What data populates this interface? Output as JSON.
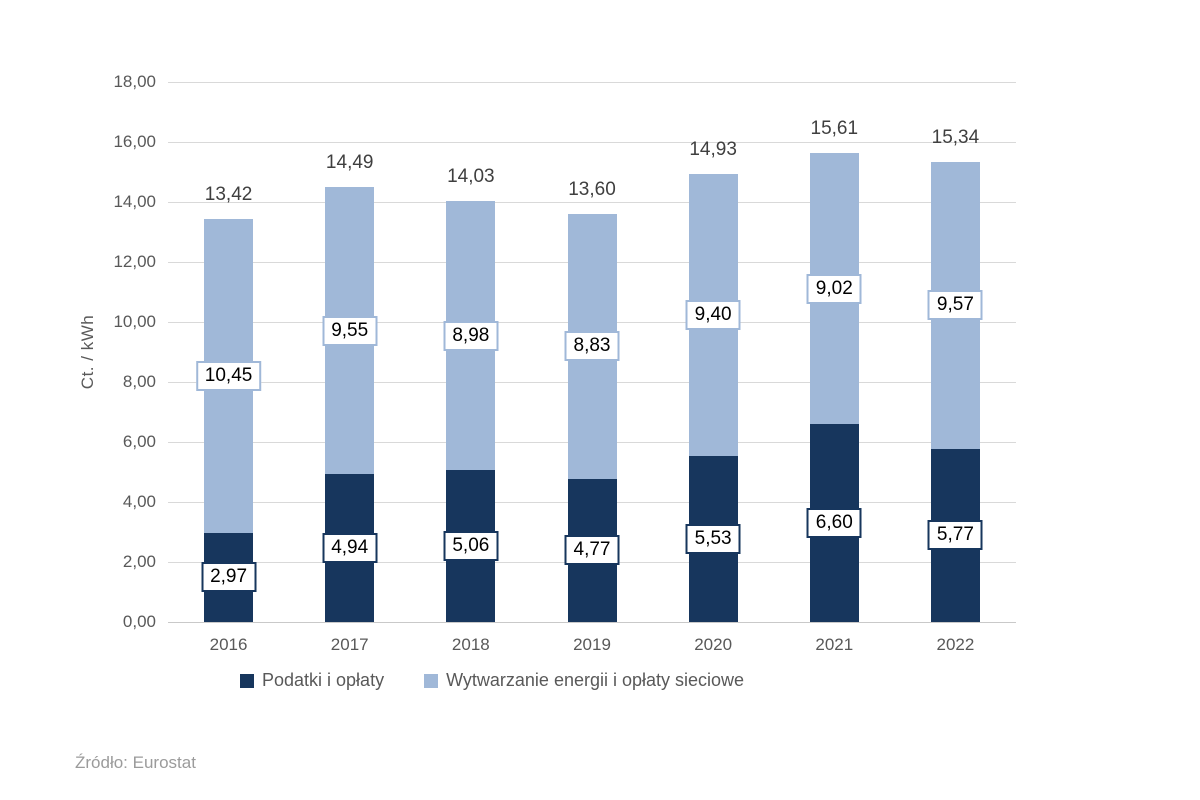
{
  "chart_data": {
    "type": "bar",
    "stacked": true,
    "title": "",
    "ylabel": "Ct. / kWh",
    "xlabel": "",
    "ylim": [
      0,
      18
    ],
    "ytick_step": 2,
    "ytick_labels": [
      "0,00",
      "2,00",
      "4,00",
      "6,00",
      "8,00",
      "10,00",
      "12,00",
      "14,00",
      "16,00",
      "18,00"
    ],
    "grid": true,
    "legend_position": "bottom",
    "categories": [
      "2016",
      "2017",
      "2018",
      "2019",
      "2020",
      "2021",
      "2022"
    ],
    "series": [
      {
        "name": "Podatki i opłaty",
        "color": "#17365D",
        "values": [
          2.97,
          4.94,
          5.06,
          4.77,
          5.53,
          6.6,
          5.77
        ],
        "labels": [
          "2,97",
          "4,94",
          "5,06",
          "4,77",
          "5,53",
          "6,60",
          "5,77"
        ]
      },
      {
        "name": "Wytwarzanie energii i opłaty sieciowe",
        "color": "#A0B8D8",
        "values": [
          10.45,
          9.55,
          8.98,
          8.83,
          9.4,
          9.02,
          9.57
        ],
        "labels": [
          "10,45",
          "9,55",
          "8,98",
          "8,83",
          "9,40",
          "9,02",
          "9,57"
        ]
      }
    ],
    "totals": [
      "13,42",
      "14,49",
      "14,03",
      "13,60",
      "14,93",
      "15,61",
      "15,34"
    ]
  },
  "source": "Źródło: Eurostat",
  "colors": {
    "dark_series": "#17365D",
    "light_series": "#A0B8D8",
    "gridline": "#D9D9D9",
    "axis_text": "#595959",
    "total_text": "#3F3F3F",
    "source_text": "#9B9B9B",
    "background": "#FFFFFF"
  }
}
